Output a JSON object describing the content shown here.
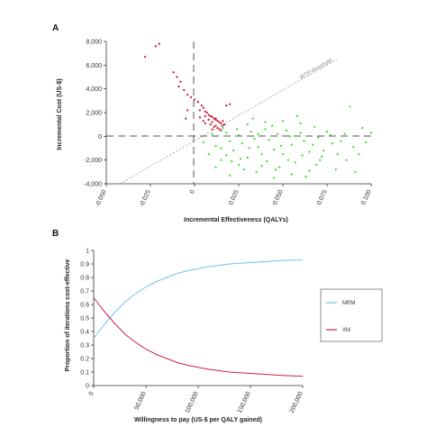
{
  "chart_data": [
    {
      "panel_label": "A",
      "type": "scatter",
      "xlabel": "Incremental Effectiveness (QALYs)",
      "ylabel": "Incremental Cost (US-$)",
      "xlim": [
        -0.05,
        0.1
      ],
      "ylim": [
        -4000,
        8000
      ],
      "xticks": [
        "-0.050",
        "-0.025",
        "0",
        "0.025",
        "0.050",
        "0.075",
        "0.100"
      ],
      "yticks": [
        "8,000",
        "6,000",
        "4,000",
        "2,000",
        "0",
        "-2,000",
        "-4,000"
      ],
      "threshold_line_label": "WTP-threshold",
      "grid": false,
      "series": [
        {
          "color": "#cc1133",
          "points": [
            [
              -0.022,
              7600
            ],
            [
              -0.02,
              7800
            ],
            [
              -0.028,
              6700
            ],
            [
              -0.01,
              5000
            ],
            [
              -0.009,
              4200
            ],
            [
              -0.008,
              4600
            ],
            [
              -0.012,
              5400
            ],
            [
              -0.006,
              3900
            ],
            [
              -0.004,
              3500
            ],
            [
              -0.002,
              3300
            ],
            [
              0.0,
              3100
            ],
            [
              0.002,
              2900
            ],
            [
              0.004,
              2600
            ],
            [
              0.005,
              2400
            ],
            [
              0.003,
              2200
            ],
            [
              0.006,
              2100
            ],
            [
              0.007,
              2000
            ],
            [
              0.008,
              1800
            ],
            [
              0.009,
              1700
            ],
            [
              0.01,
              1650
            ],
            [
              0.011,
              1500
            ],
            [
              0.012,
              1400
            ],
            [
              0.013,
              1300
            ],
            [
              0.008,
              1400
            ],
            [
              0.01,
              1200
            ],
            [
              0.014,
              1200
            ],
            [
              0.015,
              1100
            ],
            [
              0.009,
              1000
            ],
            [
              0.012,
              900
            ],
            [
              0.016,
              900
            ],
            [
              0.011,
              800
            ],
            [
              0.013,
              700
            ],
            [
              0.014,
              600
            ],
            [
              0.01,
              600
            ],
            [
              0.015,
              500
            ],
            [
              0.005,
              1300
            ],
            [
              0.003,
              1600
            ],
            [
              0.006,
              1100
            ],
            [
              -0.004,
              2200
            ],
            [
              0.018,
              2600
            ],
            [
              0.02,
              2700
            ],
            [
              -0.005,
              1500
            ],
            [
              0.016,
              1300
            ],
            [
              0.012,
              1500
            ],
            [
              0.017,
              1000
            ],
            [
              0.006,
              1700
            ]
          ]
        },
        {
          "color": "#33dd22",
          "points": [
            [
              0.005,
              -500
            ],
            [
              0.008,
              -1500
            ],
            [
              0.01,
              200
            ],
            [
              0.012,
              -800
            ],
            [
              0.015,
              -2000
            ],
            [
              0.018,
              300
            ],
            [
              0.02,
              -400
            ],
            [
              0.022,
              -1200
            ],
            [
              0.025,
              100
            ],
            [
              0.027,
              -600
            ],
            [
              0.03,
              -1800
            ],
            [
              0.032,
              400
            ],
            [
              0.034,
              -200
            ],
            [
              0.036,
              -900
            ],
            [
              0.038,
              -2500
            ],
            [
              0.04,
              600
            ],
            [
              0.042,
              -300
            ],
            [
              0.045,
              -1100
            ],
            [
              0.047,
              200
            ],
            [
              0.05,
              -1500
            ],
            [
              0.052,
              500
            ],
            [
              0.055,
              -700
            ],
            [
              0.057,
              -2200
            ],
            [
              0.06,
              300
            ],
            [
              0.062,
              -400
            ],
            [
              0.065,
              -1300
            ],
            [
              0.068,
              800
            ],
            [
              0.07,
              -100
            ],
            [
              0.072,
              -1700
            ],
            [
              0.075,
              400
            ],
            [
              0.078,
              -600
            ],
            [
              0.08,
              -2800
            ],
            [
              0.085,
              200
            ],
            [
              0.09,
              -900
            ],
            [
              0.095,
              700
            ],
            [
              0.1,
              300
            ],
            [
              0.03,
              1000
            ],
            [
              0.04,
              1200
            ],
            [
              0.05,
              1300
            ],
            [
              0.06,
              1100
            ],
            [
              0.035,
              -3000
            ],
            [
              0.028,
              -2800
            ],
            [
              0.02,
              -3300
            ],
            [
              0.045,
              -3500
            ],
            [
              0.055,
              -3200
            ],
            [
              0.065,
              -2900
            ],
            [
              0.048,
              -2600
            ],
            [
              0.033,
              1500
            ],
            [
              0.025,
              -2400
            ],
            [
              0.015,
              -1000
            ],
            [
              0.012,
              -2600
            ],
            [
              0.088,
              2500
            ],
            [
              0.058,
              1700
            ],
            [
              0.044,
              900
            ],
            [
              0.038,
              -1500
            ],
            [
              0.026,
              -1900
            ],
            [
              0.053,
              -2000
            ],
            [
              0.067,
              -700
            ],
            [
              0.073,
              -1200
            ],
            [
              0.083,
              -400
            ],
            [
              0.093,
              -1500
            ],
            [
              0.024,
              600
            ],
            [
              0.018,
              -1600
            ],
            [
              0.031,
              -1000
            ],
            [
              0.041,
              -2100
            ],
            [
              0.049,
              -800
            ],
            [
              0.061,
              -1600
            ],
            [
              0.069,
              -2400
            ],
            [
              0.077,
              100
            ],
            [
              0.086,
              -2000
            ],
            [
              0.097,
              -500
            ],
            [
              0.016,
              700
            ],
            [
              0.021,
              -2100
            ],
            [
              0.036,
              200
            ],
            [
              0.046,
              -2800
            ],
            [
              0.054,
              0
            ],
            [
              0.063,
              -3400
            ],
            [
              0.071,
              -2000
            ],
            [
              0.081,
              -1500
            ],
            [
              0.091,
              -3000
            ]
          ]
        }
      ]
    },
    {
      "panel_label": "B",
      "type": "line",
      "xlabel": "Willingness to pay (US-$ per QALY gained)",
      "ylabel": "Proportion of iterations cost-effective",
      "xlim": [
        0,
        200000
      ],
      "ylim": [
        0,
        1
      ],
      "xticks": [
        "0",
        "50,000",
        "100,000",
        "150,000",
        "200,000"
      ],
      "yticks": [
        "1",
        "0.9",
        "0.8",
        "0.7",
        "0.6",
        "0.5",
        "0.4",
        "0.3",
        "0.2",
        "0.1",
        "0"
      ],
      "legend_placement": "right",
      "grid": false,
      "x": [
        0,
        10000,
        20000,
        30000,
        40000,
        50000,
        60000,
        70000,
        80000,
        90000,
        100000,
        110000,
        120000,
        130000,
        140000,
        150000,
        160000,
        170000,
        180000,
        190000,
        200000
      ],
      "series": [
        {
          "name": "MRM",
          "color": "#6ec3ea",
          "values": [
            0.35,
            0.45,
            0.54,
            0.62,
            0.68,
            0.73,
            0.77,
            0.8,
            0.83,
            0.85,
            0.865,
            0.88,
            0.89,
            0.9,
            0.905,
            0.91,
            0.915,
            0.92,
            0.925,
            0.928,
            0.93
          ]
        },
        {
          "name": "XM",
          "color": "#cc2244",
          "values": [
            0.65,
            0.55,
            0.46,
            0.38,
            0.32,
            0.27,
            0.23,
            0.2,
            0.17,
            0.15,
            0.135,
            0.12,
            0.11,
            0.1,
            0.095,
            0.09,
            0.085,
            0.08,
            0.075,
            0.072,
            0.07
          ]
        }
      ]
    }
  ]
}
